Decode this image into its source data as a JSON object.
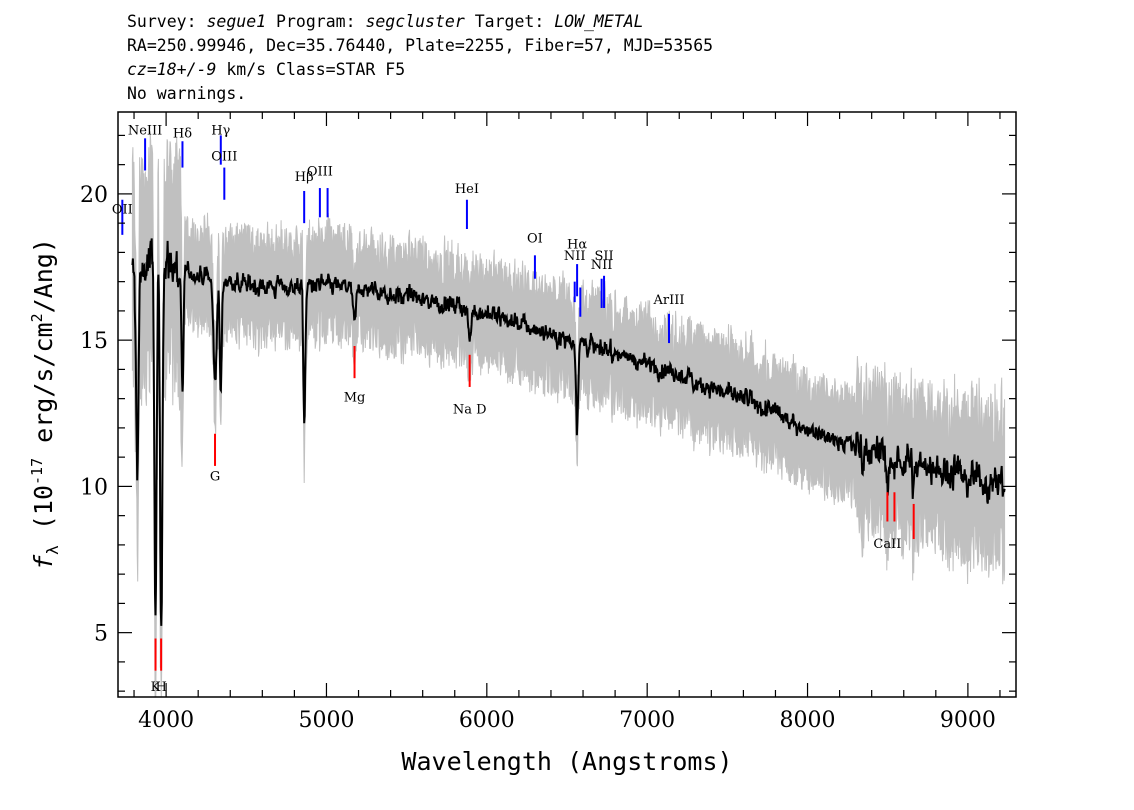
{
  "header": {
    "survey_label": "Survey: ",
    "survey": "segue1",
    "program_label": " Program: ",
    "program": "segcluster",
    "target_label": " Target: ",
    "target": "LOW_METAL",
    "line2": "RA=250.99946, Dec=35.76440, Plate=2255, Fiber=57, MJD=53565",
    "cz_label": "cz=18+/-9",
    "line3_rest": " km/s Class=STAR F5",
    "line4": "No warnings."
  },
  "chart_data": {
    "type": "line",
    "title": "",
    "xlabel": "Wavelength (Angstroms)",
    "ylabel_main": "f",
    "ylabel_sub": "λ",
    "ylabel_open": " (10",
    "ylabel_exp": "-17",
    "ylabel_rest1": " erg/s/cm",
    "ylabel_exp2": "2",
    "ylabel_rest2": "/Ang)",
    "xlim": [
      3700,
      9300
    ],
    "ylim": [
      2.8,
      22.8
    ],
    "x_ticks": [
      4000,
      5000,
      6000,
      7000,
      8000,
      9000
    ],
    "x_tick_labels": [
      "4000",
      "5000",
      "6000",
      "7000",
      "8000",
      "9000"
    ],
    "y_ticks": [
      5,
      10,
      15,
      20
    ],
    "y_tick_labels": [
      "5",
      "10",
      "15",
      "20"
    ],
    "colors": {
      "flux": "#000000",
      "noise": "#c0c0c0",
      "emission": "#0000ff",
      "absorption": "#ff0000"
    },
    "continuum": [
      [
        3800,
        17.2
      ],
      [
        3900,
        17.6
      ],
      [
        4000,
        17.6
      ],
      [
        4200,
        17.2
      ],
      [
        4400,
        17.0
      ],
      [
        4700,
        16.8
      ],
      [
        5000,
        16.9
      ],
      [
        5300,
        16.7
      ],
      [
        5600,
        16.4
      ],
      [
        6000,
        15.9
      ],
      [
        6300,
        15.4
      ],
      [
        6600,
        14.9
      ],
      [
        7000,
        14.2
      ],
      [
        7500,
        13.2
      ],
      [
        8000,
        12.0
      ],
      [
        8500,
        11.0
      ],
      [
        9000,
        10.4
      ],
      [
        9230,
        10.1
      ]
    ],
    "absorption_features": [
      {
        "center": 3820,
        "depth": 6.5,
        "width": 8
      },
      {
        "center": 3934,
        "depth": 12.0,
        "width": 7
      },
      {
        "center": 3969,
        "depth": 12.5,
        "width": 7
      },
      {
        "center": 4102,
        "depth": 4.5,
        "width": 6
      },
      {
        "center": 4305,
        "depth": 3.5,
        "width": 10
      },
      {
        "center": 4341,
        "depth": 4.0,
        "width": 6
      },
      {
        "center": 4862,
        "depth": 4.8,
        "width": 6
      },
      {
        "center": 5175,
        "depth": 1.2,
        "width": 10
      },
      {
        "center": 5893,
        "depth": 1.0,
        "width": 8
      },
      {
        "center": 6563,
        "depth": 3.0,
        "width": 6
      },
      {
        "center": 8498,
        "depth": 0.8,
        "width": 6
      },
      {
        "center": 8542,
        "depth": 0.9,
        "width": 6
      },
      {
        "center": 8662,
        "depth": 0.9,
        "width": 6
      }
    ],
    "emission_lines": [
      {
        "wave": 3727,
        "label": "OII",
        "label_y": 19.2,
        "bar": [
          18.6,
          19.8
        ]
      },
      {
        "wave": 3869,
        "label": "NeIII",
        "label_y": 21.9,
        "bar": [
          20.8,
          21.9
        ]
      },
      {
        "wave": 4102,
        "label": "Hδ",
        "label_y": 21.8,
        "bar": [
          20.9,
          21.8
        ]
      },
      {
        "wave": 4341,
        "label": "Hγ",
        "label_y": 21.9,
        "bar": [
          21.0,
          22.0
        ]
      },
      {
        "wave": 4363,
        "label": "OIII",
        "label_y": 21.0,
        "bar": [
          19.8,
          20.9
        ]
      },
      {
        "wave": 4861,
        "label": "Hβ",
        "label_y": 20.3,
        "bar": [
          19.0,
          20.1
        ]
      },
      {
        "wave": 4959,
        "label": "OIII",
        "label_y": 20.5,
        "bar": [
          19.2,
          20.2
        ]
      },
      {
        "wave": 5007,
        "label": "",
        "label_y": 20.5,
        "bar": [
          19.2,
          20.2
        ]
      },
      {
        "wave": 5876,
        "label": "HeI",
        "label_y": 19.9,
        "bar": [
          18.8,
          19.8
        ]
      },
      {
        "wave": 6300,
        "label": "OI",
        "label_y": 18.2,
        "bar": [
          17.1,
          17.9
        ]
      },
      {
        "wave": 6548,
        "label": "NII",
        "label_y": 17.6,
        "bar": [
          16.3,
          17.0
        ]
      },
      {
        "wave": 6563,
        "label": "Hα",
        "label_y": 18.0,
        "bar": [
          16.5,
          17.6
        ]
      },
      {
        "wave": 6583,
        "label": "",
        "label_y": 17.6,
        "bar": [
          15.8,
          16.8
        ]
      },
      {
        "wave": 6716,
        "label": "NII",
        "label_y": 17.3,
        "bar": [
          16.1,
          17.1
        ]
      },
      {
        "wave": 6731,
        "label": "SII",
        "label_y": 17.6,
        "bar": [
          16.1,
          17.2
        ]
      },
      {
        "wave": 7136,
        "label": "ArIII",
        "label_y": 16.1,
        "bar": [
          14.9,
          15.9
        ]
      }
    ],
    "absorption_lines": [
      {
        "wave": 3934,
        "label": "K",
        "label_y": 3.0,
        "bar": [
          3.7,
          4.8
        ]
      },
      {
        "wave": 3969,
        "label": "H",
        "label_y": 3.0,
        "bar": [
          3.7,
          4.8
        ]
      },
      {
        "wave": 4305,
        "label": "G",
        "label_y": 10.2,
        "bar": [
          10.7,
          11.8
        ]
      },
      {
        "wave": 5175,
        "label": "Mg",
        "label_y": 12.9,
        "bar": [
          13.7,
          14.8
        ]
      },
      {
        "wave": 5893,
        "label": "Na D",
        "label_y": 12.5,
        "bar": [
          13.4,
          14.5
        ]
      },
      {
        "wave": 8498,
        "label": "CaII",
        "label_y": 7.9,
        "bar": [
          8.8,
          9.8
        ]
      },
      {
        "wave": 8542,
        "label": "",
        "label_y": 7.9,
        "bar": [
          8.8,
          9.8
        ]
      },
      {
        "wave": 8662,
        "label": "",
        "label_y": 7.9,
        "bar": [
          8.2,
          9.4
        ]
      }
    ]
  }
}
